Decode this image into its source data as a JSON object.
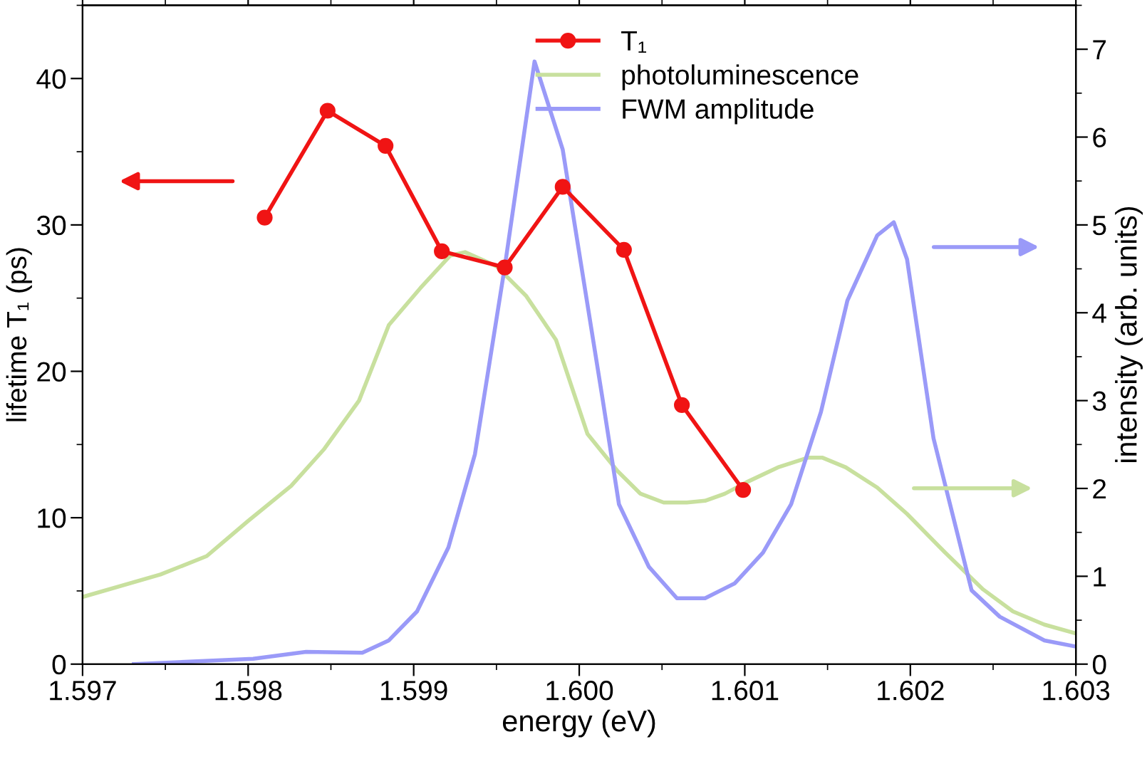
{
  "chart_data": {
    "type": "line",
    "xlabel": "energy (eV)",
    "ylabel": "lifetime T₁ (ps)",
    "y2label": "intensity (arb. units)",
    "xlim": [
      1.597,
      1.603
    ],
    "xticks": [
      1.597,
      1.598,
      1.599,
      {
        "value": 1.6,
        "label": "1.600"
      },
      1.601,
      1.602,
      1.603
    ],
    "ylim": [
      0,
      45
    ],
    "yticks": [
      0,
      10,
      20,
      30,
      40
    ],
    "y2lim": [
      0,
      7.5
    ],
    "y2ticks": [
      0,
      1,
      2,
      3,
      4,
      5,
      6,
      7
    ],
    "grid": false,
    "legend": "top",
    "line_style": "solid",
    "series": [
      {
        "name": "T₁",
        "color": "#f01414",
        "marker": "circle",
        "x": [
          1.5981,
          1.59848,
          1.59883,
          1.59917,
          1.59955,
          1.5999,
          1.60027,
          1.60062,
          1.60099
        ],
        "values": [
          30.5,
          37.8,
          35.4,
          28.2,
          27.1,
          32.6,
          28.3,
          17.7,
          11.9
        ]
      },
      {
        "name": "photoluminescence",
        "color": "#c8e09e",
        "marker": "none",
        "axis": "y2",
        "x": [
          1.59701,
          1.59747,
          1.59775,
          1.598,
          1.59826,
          1.59846,
          1.59867,
          1.59885,
          1.59904,
          1.59922,
          1.59931,
          1.5995,
          1.59968,
          1.59986,
          1.60005,
          1.60023,
          1.60037,
          1.60051,
          1.60065,
          1.60076,
          1.60088,
          1.60101,
          1.6012,
          1.60138,
          1.60147,
          1.60161,
          1.6018,
          1.60198,
          1.60221,
          1.60244,
          1.60262,
          1.60281,
          1.603
        ],
        "values": [
          0.77,
          1.02,
          1.23,
          1.63,
          2.03,
          2.45,
          3.0,
          3.86,
          4.28,
          4.65,
          4.69,
          4.53,
          4.19,
          3.69,
          2.62,
          2.2,
          1.94,
          1.84,
          1.84,
          1.86,
          1.94,
          2.07,
          2.24,
          2.35,
          2.35,
          2.24,
          2.01,
          1.71,
          1.27,
          0.85,
          0.6,
          0.45,
          0.35
        ]
      },
      {
        "name": "FWM amplitude",
        "color": "#9a9af8",
        "marker": "none",
        "axis": "y2",
        "x": [
          1.59731,
          1.59803,
          1.59835,
          1.59869,
          1.59885,
          1.59902,
          1.59921,
          1.59937,
          1.59955,
          1.59973,
          1.5999,
          1.60014,
          1.60024,
          1.60042,
          1.60059,
          1.60076,
          1.60094,
          1.60111,
          1.60128,
          1.60146,
          1.60162,
          1.6018,
          1.6019,
          1.60198,
          1.60214,
          1.60237,
          1.60254,
          1.60281,
          1.603
        ],
        "values": [
          0,
          0.06,
          0.14,
          0.13,
          0.27,
          0.6,
          1.33,
          2.39,
          4.52,
          6.86,
          5.86,
          3.03,
          1.82,
          1.11,
          0.75,
          0.75,
          0.92,
          1.27,
          1.82,
          2.87,
          4.14,
          4.88,
          5.03,
          4.61,
          2.57,
          0.84,
          0.54,
          0.27,
          0.2
        ]
      }
    ]
  }
}
